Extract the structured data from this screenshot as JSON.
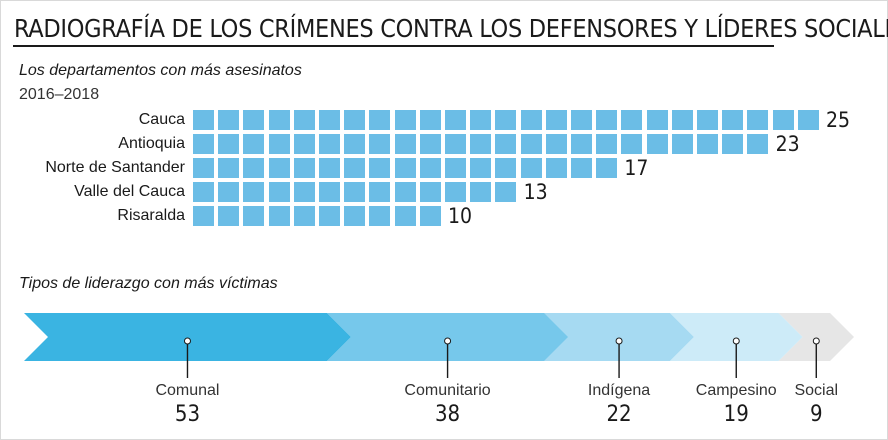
{
  "title": "RADIOGRAFÍA DE LOS CRÍMENES CONTRA LOS DEFENSORES Y LÍDERES SOCIALES",
  "departments": {
    "title": "Los departamentos con más asesinatos",
    "period": "2016–2018"
  },
  "leadership": {
    "title": "Tipos de liderazgo con más víctimas"
  },
  "chart_data": [
    {
      "type": "bar",
      "title": "Los departamentos con más asesinatos",
      "subtitle": "2016–2018",
      "categories": [
        "Cauca",
        "Antioquia",
        "Norte de Santander",
        "Valle del Cauca",
        "Risaralda"
      ],
      "values": [
        25,
        23,
        17,
        13,
        10
      ],
      "colors": {
        "unit": "#6bbde6"
      }
    },
    {
      "type": "bar",
      "title": "Tipos de liderazgo con más víctimas",
      "categories": [
        "Comunal",
        "Comunitario",
        "Indígena",
        "Campesino",
        "Social"
      ],
      "values": [
        53,
        38,
        22,
        19,
        9
      ],
      "colors": [
        "#3ab4e2",
        "#76c8eb",
        "#a6daf2",
        "#cdebf8",
        "#e6e6e6"
      ]
    }
  ]
}
